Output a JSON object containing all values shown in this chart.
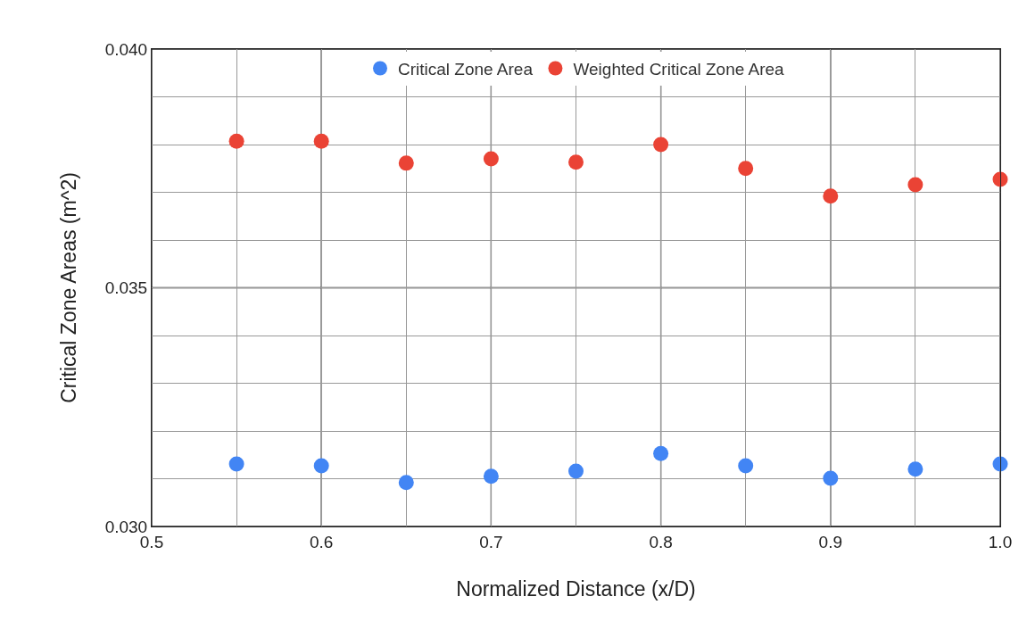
{
  "chart_data": {
    "type": "scatter",
    "xlabel": "Normalized Distance (x/D)",
    "ylabel": "Critical Zone Areas (m^2)",
    "x": [
      0.55,
      0.6,
      0.65,
      0.7,
      0.75,
      0.8,
      0.85,
      0.9,
      0.95,
      1.0
    ],
    "series": [
      {
        "name": "Critical Zone Area",
        "color": "#4285f4",
        "values": [
          0.03131,
          0.03127,
          0.03092,
          0.03105,
          0.03116,
          0.03153,
          0.03127,
          0.03101,
          0.0312,
          0.03131
        ]
      },
      {
        "name": "Weighted Critical Zone Area",
        "color": "#ea4335",
        "values": [
          0.03807,
          0.03807,
          0.03761,
          0.0377,
          0.03763,
          0.038,
          0.0375,
          0.03692,
          0.03716,
          0.03727
        ]
      }
    ],
    "xlim": [
      0.5,
      1.0
    ],
    "xticks": [
      0.5,
      {
        "value": 0.55,
        "label": null
      },
      0.6,
      {
        "value": 0.65,
        "label": null
      },
      0.7,
      {
        "value": 0.75,
        "label": null
      },
      0.8,
      {
        "value": 0.85,
        "label": null
      },
      0.9,
      {
        "value": 0.95,
        "label": null
      },
      {
        "value": 1.0,
        "label": "1.0"
      }
    ],
    "ylim": [
      0.03,
      0.04
    ],
    "yticks": [
      "0.030",
      {
        "value": 0.031,
        "label": null
      },
      {
        "value": 0.032,
        "label": null
      },
      {
        "value": 0.033,
        "label": null
      },
      {
        "value": 0.034,
        "label": null
      },
      {
        "value": 0.035,
        "label": "0.035"
      },
      {
        "value": 0.036,
        "label": null
      },
      {
        "value": 0.037,
        "label": null
      },
      {
        "value": 0.038,
        "label": null
      },
      {
        "value": 0.039,
        "label": null
      },
      {
        "value": 0.04,
        "label": "0.040"
      }
    ],
    "grid": true,
    "legend": "top",
    "marker": "circle"
  }
}
